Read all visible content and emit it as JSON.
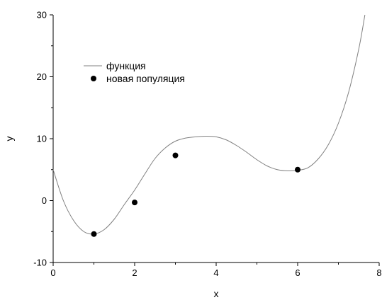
{
  "chart_data": {
    "type": "line",
    "xlabel": "x",
    "ylabel": "y",
    "xlim": [
      0,
      8
    ],
    "ylim": [
      -10,
      30
    ],
    "x_ticks": [
      "0",
      "2",
      "4",
      "6",
      "8"
    ],
    "y_ticks": [
      "-10",
      "0",
      "10",
      "20",
      "30"
    ],
    "grid": false,
    "legend_position": "top-left",
    "series": [
      {
        "name": "функция",
        "kind": "line",
        "color": "#808080",
        "x": [
          0,
          0.25,
          0.5,
          0.75,
          1.0,
          1.25,
          1.5,
          1.75,
          2.0,
          2.25,
          2.5,
          2.75,
          3.0,
          3.25,
          3.5,
          3.75,
          4.0,
          4.25,
          4.5,
          4.75,
          5.0,
          5.25,
          5.5,
          5.75,
          6.0,
          6.25,
          6.5,
          6.75,
          7.0,
          7.25,
          7.5,
          7.65
        ],
        "y": [
          5.0,
          0.0,
          -3.2,
          -5.0,
          -5.4,
          -4.7,
          -3.0,
          -0.6,
          1.7,
          4.3,
          6.8,
          8.5,
          9.6,
          10.1,
          10.3,
          10.4,
          10.3,
          9.8,
          8.9,
          7.8,
          6.6,
          5.6,
          5.0,
          4.8,
          4.9,
          5.3,
          6.7,
          9.0,
          12.5,
          17.5,
          24.5,
          30.0
        ]
      },
      {
        "name": "новая популяция",
        "kind": "scatter",
        "color": "#000000",
        "x": [
          1,
          2,
          3,
          6
        ],
        "y": [
          -5.4,
          -0.3,
          7.3,
          5.0
        ]
      }
    ]
  }
}
